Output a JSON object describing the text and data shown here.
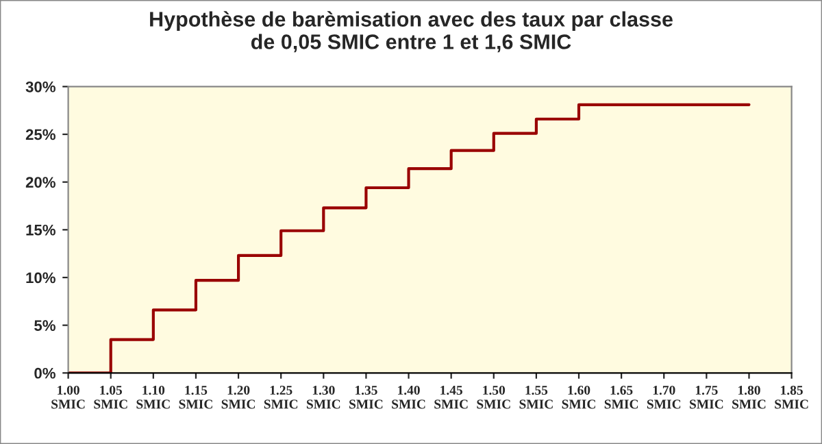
{
  "chart_data": {
    "type": "step",
    "title": "Hypothèse de barèmisation avec des taux par classe\nde 0,05 SMIC entre 1 et 1,6 SMIC",
    "x": [
      1.0,
      1.05,
      1.1,
      1.15,
      1.2,
      1.25,
      1.3,
      1.35,
      1.4,
      1.45,
      1.5,
      1.55,
      1.6,
      1.8
    ],
    "series": [
      {
        "color": "#990000",
        "values": [
          0,
          3.5,
          6.6,
          9.7,
          12.3,
          14.9,
          17.3,
          19.4,
          21.4,
          23.3,
          25.1,
          26.6,
          28.1,
          28.1
        ]
      }
    ],
    "xlim": [
      1.0,
      1.85
    ],
    "xticks": [
      {
        "value": 1.0,
        "label": "1.00\nSMIC"
      },
      {
        "value": 1.05,
        "label": "1.05\nSMIC"
      },
      {
        "value": 1.1,
        "label": "1.10\nSMIC"
      },
      {
        "value": 1.15,
        "label": "1.15\nSMIC"
      },
      {
        "value": 1.2,
        "label": "1.20\nSMIC"
      },
      {
        "value": 1.25,
        "label": "1.25\nSMIC"
      },
      {
        "value": 1.3,
        "label": "1.30\nSMIC"
      },
      {
        "value": 1.35,
        "label": "1.35\nSMIC"
      },
      {
        "value": 1.4,
        "label": "1.40\nSMIC"
      },
      {
        "value": 1.45,
        "label": "1.45\nSMIC"
      },
      {
        "value": 1.5,
        "label": "1.50\nSMIC"
      },
      {
        "value": 1.55,
        "label": "1.55\nSMIC"
      },
      {
        "value": 1.6,
        "label": "1.60\nSMIC"
      },
      {
        "value": 1.65,
        "label": "1.65\nSMIC"
      },
      {
        "value": 1.7,
        "label": "1.70\nSMIC"
      },
      {
        "value": 1.75,
        "label": "1.75\nSMIC"
      },
      {
        "value": 1.8,
        "label": "1.80\nSMIC"
      },
      {
        "value": 1.85,
        "label": "1.85\nSMIC"
      }
    ],
    "ylim": [
      0,
      30
    ],
    "yticks": [
      {
        "value": 0,
        "label": "0%"
      },
      {
        "value": 5,
        "label": "5%"
      },
      {
        "value": 10,
        "label": "10%"
      },
      {
        "value": 15,
        "label": "15%"
      },
      {
        "value": 20,
        "label": "20%"
      },
      {
        "value": 25,
        "label": "25%"
      },
      {
        "value": 30,
        "label": "30%"
      }
    ],
    "grid": false,
    "legend": false
  }
}
